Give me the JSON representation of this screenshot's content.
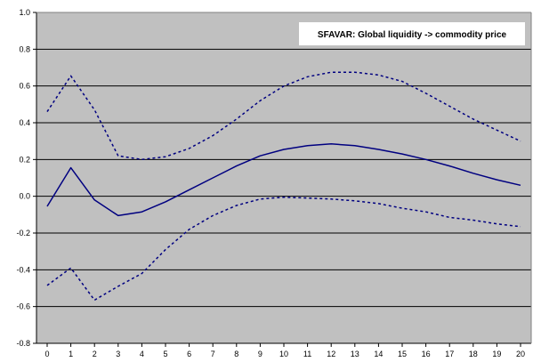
{
  "chart_data": {
    "type": "line",
    "title": "SFAVAR: Global liquidity -> commodity price",
    "xlabel": "",
    "ylabel": "",
    "x": [
      0,
      1,
      2,
      3,
      4,
      5,
      6,
      7,
      8,
      9,
      10,
      11,
      12,
      13,
      14,
      15,
      16,
      17,
      18,
      19,
      20
    ],
    "x_ticks": [
      "0",
      "1",
      "2",
      "3",
      "4",
      "5",
      "6",
      "7",
      "8",
      "9",
      "10",
      "11",
      "12",
      "13",
      "14",
      "15",
      "16",
      "17",
      "18",
      "19",
      "20"
    ],
    "ylim": [
      -0.8,
      1.0
    ],
    "y_ticks": [
      "-0.8",
      "-0.6",
      "-0.4",
      "-0.2",
      "0.0",
      "0.2",
      "0.4",
      "0.6",
      "0.8",
      "1.0"
    ],
    "y_tick_values": [
      -0.8,
      -0.6,
      -0.4,
      -0.2,
      0.0,
      0.2,
      0.4,
      0.6,
      0.8,
      1.0
    ],
    "grid": "horizontal",
    "legend_position": "top-right",
    "series": [
      {
        "role": "upper-band",
        "style": "dashed",
        "values": [
          0.46,
          0.655,
          0.47,
          0.22,
          0.2,
          0.215,
          0.26,
          0.33,
          0.42,
          0.52,
          0.6,
          0.65,
          0.675,
          0.675,
          0.66,
          0.625,
          0.56,
          0.49,
          0.42,
          0.36,
          0.3
        ]
      },
      {
        "role": "estimate",
        "style": "solid",
        "values": [
          -0.055,
          0.155,
          -0.02,
          -0.105,
          -0.085,
          -0.03,
          0.035,
          0.1,
          0.165,
          0.22,
          0.255,
          0.275,
          0.285,
          0.275,
          0.255,
          0.23,
          0.2,
          0.165,
          0.125,
          0.09,
          0.06
        ]
      },
      {
        "role": "lower-band",
        "style": "dashed",
        "values": [
          -0.485,
          -0.39,
          -0.565,
          -0.49,
          -0.42,
          -0.29,
          -0.18,
          -0.105,
          -0.05,
          -0.015,
          -0.005,
          -0.01,
          -0.015,
          -0.025,
          -0.04,
          -0.065,
          -0.085,
          -0.115,
          -0.13,
          -0.15,
          -0.165
        ]
      }
    ],
    "colors": {
      "plot_background": "#c0c0c0",
      "line": "#000080",
      "grid": "#000000",
      "legend_background": "#ffffff"
    }
  }
}
